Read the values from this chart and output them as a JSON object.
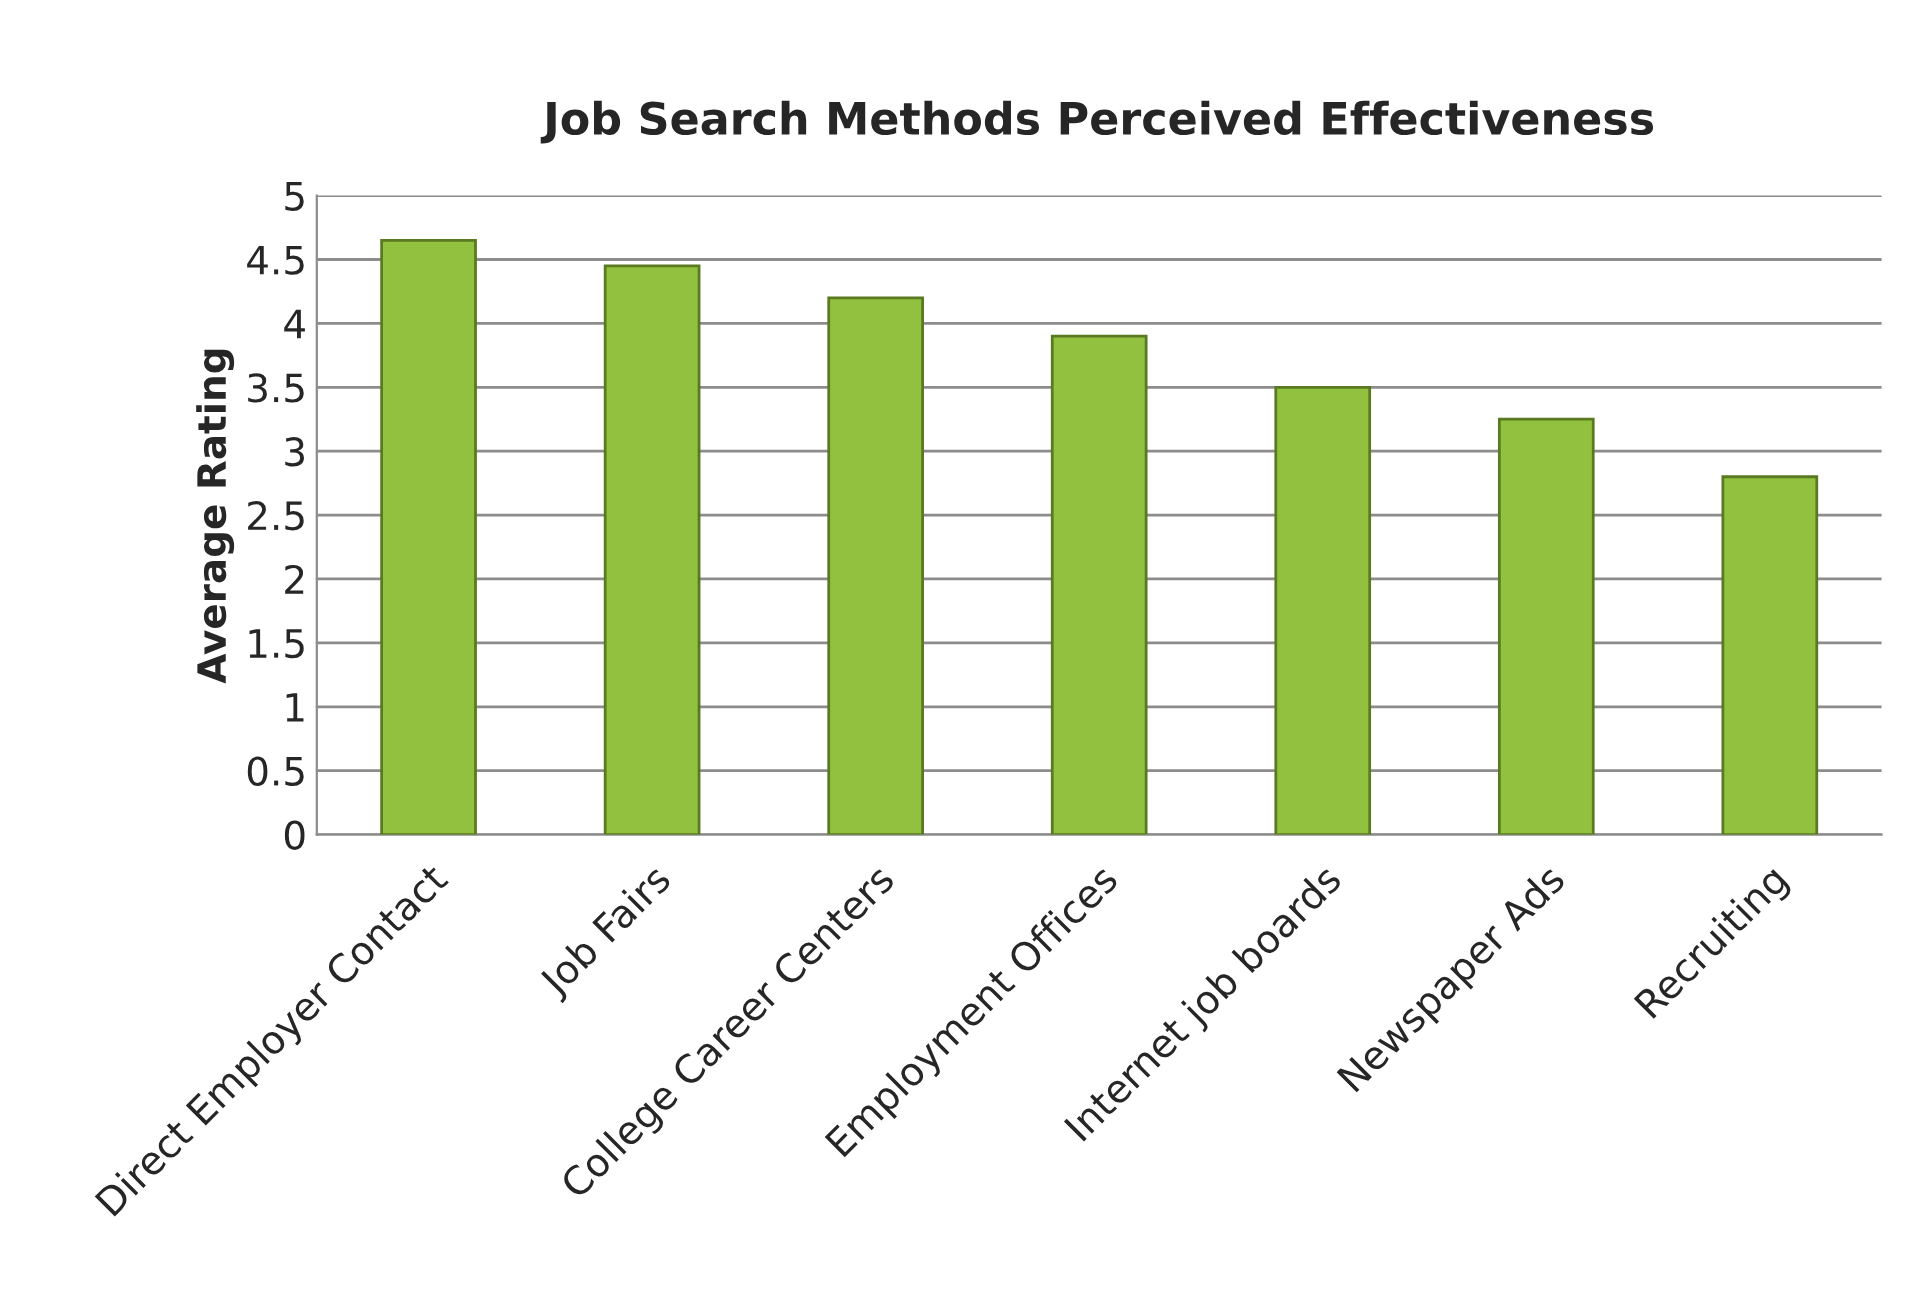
{
  "chart_data": {
    "type": "bar",
    "title": "Job Search Methods Perceived Effectiveness",
    "ylabel": "Average Rating",
    "categories": [
      "Direct Employer Contact",
      "Job Fairs",
      "College Career Centers",
      "Employment Offices",
      "Internet job boards",
      "Newspaper Ads",
      "Recruiting"
    ],
    "values": [
      4.65,
      4.45,
      4.2,
      3.9,
      3.5,
      3.25,
      2.8
    ],
    "color": "#92c13f",
    "ylim": [
      0,
      5
    ],
    "yticks": [
      0,
      {
        "value": 0.5,
        "label": "0.5"
      },
      1,
      {
        "value": 1.5,
        "label": "1.5"
      },
      2,
      {
        "value": 2.5,
        "label": "2.5"
      },
      3,
      {
        "value": 3.5,
        "label": "3.5"
      },
      4,
      {
        "value": 4.5,
        "label": "4.5"
      },
      5
    ],
    "grid": "y",
    "legend": false
  }
}
